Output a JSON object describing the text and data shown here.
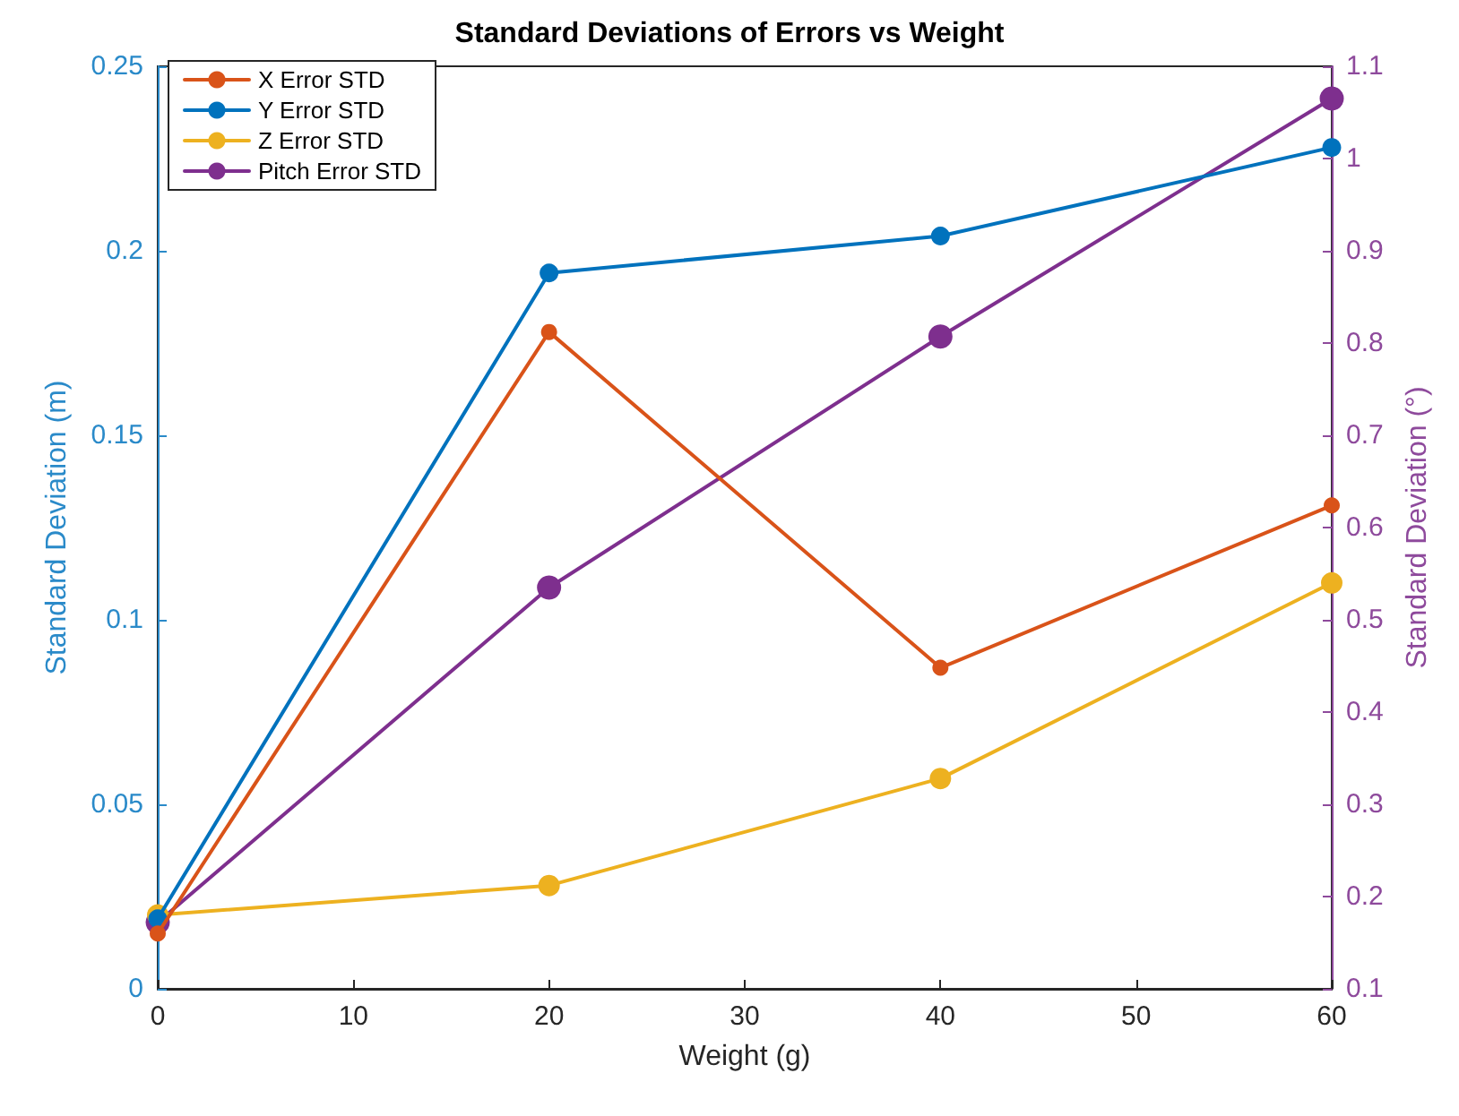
{
  "chart_data": {
    "type": "line",
    "title": "Standard Deviations of Errors vs Weight",
    "xlabel": "Weight (g)",
    "ylabel": "Standard Deviation (m)",
    "y2label": "Standard Deviation (°)",
    "x": [
      0,
      20,
      40,
      60
    ],
    "series": [
      {
        "name": "X Error STD",
        "color": "#d95319",
        "values": [
          0.015,
          0.178,
          0.087,
          0.131
        ]
      },
      {
        "name": "Y Error STD",
        "color": "#0072bd",
        "values": [
          0.019,
          0.194,
          0.204,
          0.228
        ]
      },
      {
        "name": "Z Error STD",
        "color": "#edb120",
        "values": [
          0.02,
          0.028,
          0.057,
          0.11
        ]
      },
      {
        "name": "Pitch Error STD",
        "color": "#7e2f8e",
        "axis": "y2",
        "values": [
          0.172,
          0.535,
          0.807,
          1.065
        ]
      }
    ],
    "xlim": [
      0,
      60
    ],
    "xticks": [
      0,
      10,
      20,
      30,
      40,
      50,
      60
    ],
    "ylim": [
      0,
      0.25
    ],
    "yticks": [
      0,
      0.05,
      0.1,
      0.15,
      0.2,
      0.25
    ],
    "y2lim": [
      0.1,
      1.1
    ],
    "y2ticks": [
      0.1,
      0.2,
      0.3,
      0.4,
      0.5,
      0.6,
      0.7,
      0.8,
      0.9,
      1,
      1.1
    ],
    "grid": false,
    "legend": "top left",
    "marker": "circle",
    "line_style": "solid"
  }
}
